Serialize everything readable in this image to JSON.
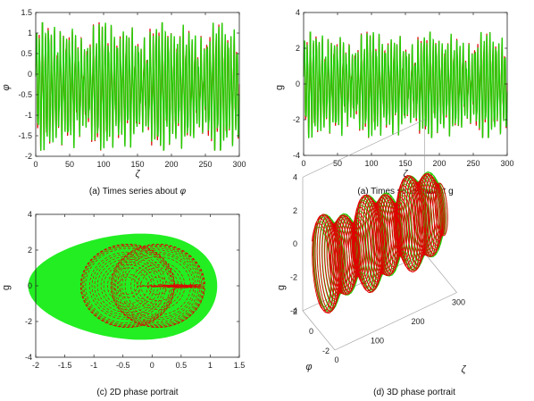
{
  "chart_data": [
    {
      "id": "a",
      "type": "line",
      "caption": "(a) Times series about",
      "caption_symbol": "φ",
      "xlabel": "ζ",
      "ylabel": "φ",
      "xlim": [
        0,
        300
      ],
      "ylim": [
        -2,
        1.5
      ],
      "xticks": [
        "0",
        "50",
        "100",
        "150",
        "200",
        "250",
        "300"
      ],
      "yticks": [
        "-2",
        "-1.5",
        "-1",
        "-0.5",
        "0",
        "0.5",
        "1",
        "1.5"
      ],
      "series_colors": [
        "#e00000",
        "#22cc00"
      ],
      "signal": {
        "upper_peak": 1.25,
        "lower_peak": -1.85,
        "mean": -0.2,
        "oscillations": 68
      }
    },
    {
      "id": "b",
      "type": "line",
      "caption": "(a) Times series about g",
      "xlabel": "ζ",
      "ylabel": "g",
      "xlim": [
        0,
        300
      ],
      "ylim": [
        -4,
        4
      ],
      "xticks": [
        "0",
        "50",
        "100",
        "150",
        "200",
        "250",
        "300"
      ],
      "yticks": [
        "-4",
        "-2",
        "0",
        "2",
        "4"
      ],
      "series_colors": [
        "#e00000",
        "#22cc00"
      ],
      "signal": {
        "upper_peak": 2.9,
        "lower_peak": -3.0,
        "mean": 0,
        "oscillations": 68
      }
    },
    {
      "id": "c",
      "type": "scatter",
      "caption": "(c) 2D phase portrait",
      "xlabel": "",
      "ylabel": "g",
      "xlim": [
        -2,
        1.5
      ],
      "ylim": [
        -4,
        4
      ],
      "xticks": [
        "-2",
        "-1.5",
        "-1",
        "-0.5",
        "0",
        "0.5",
        "1",
        "1.5"
      ],
      "yticks": [
        "-4",
        "-2",
        "0",
        "2",
        "4"
      ],
      "series_colors": [
        "#e00000",
        "#22ee22"
      ],
      "region": {
        "phi_min": -1.95,
        "phi_max": 1.3,
        "g_min": -3.0,
        "g_max": 2.9,
        "centers": [
          -0.42,
          0.1
        ]
      }
    },
    {
      "id": "d",
      "type": "line",
      "caption": "(d) 3D phase portrait",
      "xlabel": "ζ",
      "ylabel": "φ",
      "zlabel": "g",
      "xlim": [
        0,
        300
      ],
      "ylim": [
        -2,
        2
      ],
      "zlim": [
        -4,
        4
      ],
      "xticks": [
        "0",
        "100",
        "200",
        "300"
      ],
      "yticks": [
        "-2",
        "0",
        "2"
      ],
      "zticks": [
        "-4",
        "-2",
        "0",
        "2",
        "4"
      ],
      "series_colors": [
        "#e00000",
        "#22cc00"
      ]
    }
  ]
}
